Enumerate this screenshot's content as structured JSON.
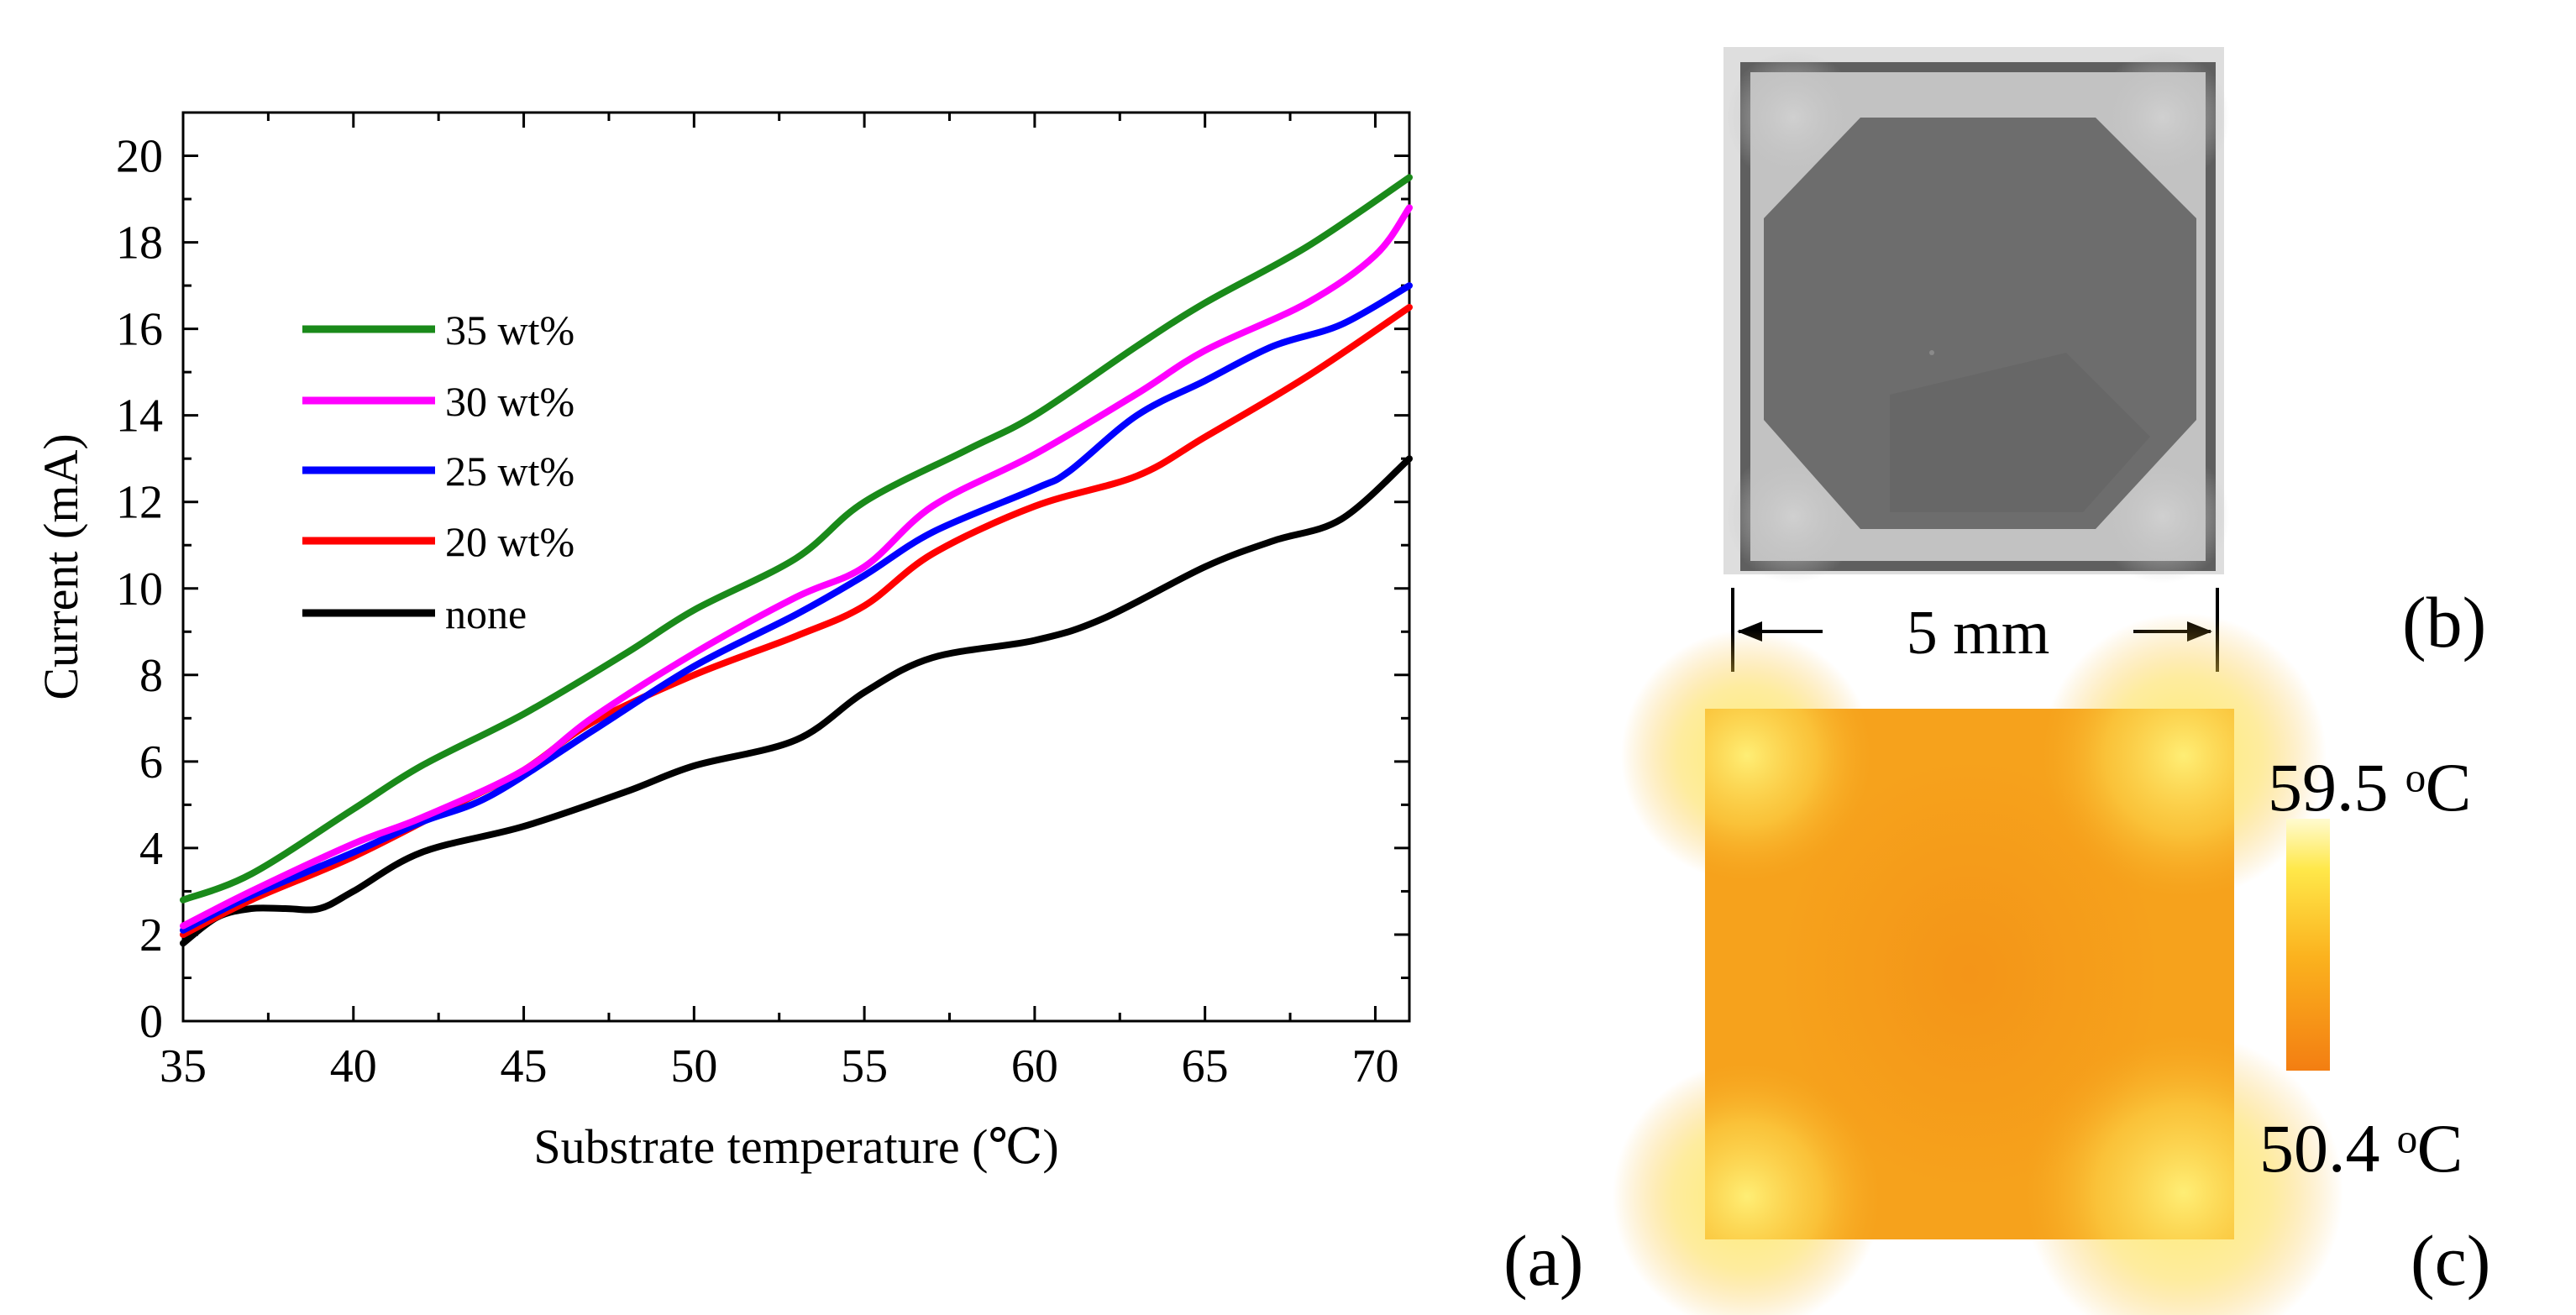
{
  "colors": {
    "series_35": "#1a8a1a",
    "series_30": "#ff00ff",
    "series_25": "#0000ff",
    "series_20": "#ff0000",
    "series_none": "#000000",
    "photo_background": "#dcdcdc",
    "photo_frame": "#5f5f5f",
    "photo_film": "#6d6d6d",
    "thermal_base": "#f6a21c",
    "thermal_hot": "#fff27a",
    "thermal_cold": "#f37e12"
  },
  "chart_data": {
    "type": "line",
    "title": "",
    "xlabel": "Substrate temperature (℃)",
    "ylabel": "Current (mA)",
    "xlim": [
      35,
      71
    ],
    "ylim": [
      0,
      21
    ],
    "x_ticks": [
      35,
      40,
      45,
      50,
      55,
      60,
      65,
      70
    ],
    "y_ticks": [
      0,
      2,
      4,
      6,
      8,
      10,
      12,
      14,
      16,
      18,
      20
    ],
    "legend_position": "left-center",
    "series": [
      {
        "name": "35 wt%",
        "color": "#1a8a1a",
        "x": [
          35,
          37,
          40,
          42,
          45,
          48,
          50,
          53,
          55,
          58,
          60,
          63,
          65,
          68,
          71
        ],
        "y": [
          2.8,
          3.4,
          4.9,
          5.9,
          7.1,
          8.5,
          9.5,
          10.7,
          12.0,
          13.2,
          14.0,
          15.6,
          16.6,
          17.9,
          19.5
        ]
      },
      {
        "name": "30 wt%",
        "color": "#ff00ff",
        "x": [
          35,
          37,
          40,
          42,
          45,
          47,
          50,
          53,
          55,
          57,
          60,
          63,
          65,
          68,
          70,
          71
        ],
        "y": [
          2.2,
          3.0,
          4.1,
          4.7,
          5.8,
          7.0,
          8.5,
          9.8,
          10.5,
          11.9,
          13.1,
          14.5,
          15.5,
          16.6,
          17.7,
          18.8
        ]
      },
      {
        "name": "25 wt%",
        "color": "#0000ff",
        "x": [
          35,
          37,
          40,
          42,
          44,
          47,
          50,
          53,
          55,
          57,
          60,
          61,
          63,
          65,
          67,
          69,
          71
        ],
        "y": [
          2.1,
          2.9,
          3.9,
          4.6,
          5.2,
          6.7,
          8.2,
          9.4,
          10.3,
          11.3,
          12.3,
          12.7,
          14.0,
          14.8,
          15.6,
          16.1,
          17.0
        ]
      },
      {
        "name": "20 wt%",
        "color": "#ff0000",
        "x": [
          35,
          37,
          40,
          43,
          45,
          47,
          50,
          53,
          55,
          57,
          60,
          63,
          65,
          68,
          71
        ],
        "y": [
          2.0,
          2.8,
          3.8,
          5.0,
          5.8,
          6.9,
          8.0,
          8.9,
          9.6,
          10.8,
          11.9,
          12.6,
          13.5,
          14.9,
          16.5
        ]
      },
      {
        "name": "none",
        "color": "#000000",
        "x": [
          35,
          36,
          37,
          38,
          39,
          40,
          42,
          45,
          48,
          50,
          53,
          55,
          57,
          60,
          62,
          65,
          67,
          69,
          71
        ],
        "y": [
          1.8,
          2.4,
          2.6,
          2.6,
          2.6,
          3.0,
          3.9,
          4.5,
          5.3,
          5.9,
          6.5,
          7.6,
          8.4,
          8.8,
          9.3,
          10.5,
          11.1,
          11.6,
          13.0
        ]
      }
    ]
  },
  "panels": {
    "a_label": "(a)",
    "b_label": "(b)",
    "c_label": "(c)",
    "scale_bar_label": "5 mm",
    "temp_max_label": "59.5 ᵒC",
    "temp_min_label": "50.4 ᵒC"
  }
}
